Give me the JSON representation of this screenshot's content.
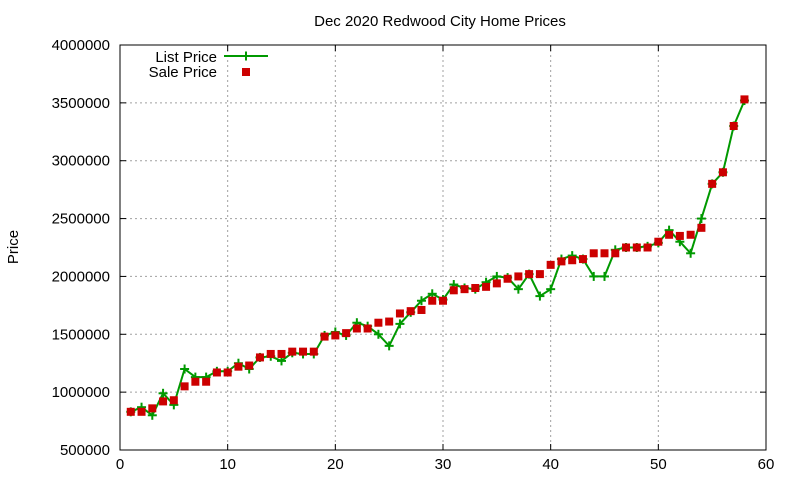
{
  "chart_data": {
    "type": "line",
    "title": "Dec 2020 Redwood City Home Prices",
    "xlabel": "",
    "ylabel": "Price",
    "xlim": [
      0,
      60
    ],
    "ylim": [
      500000,
      4000000
    ],
    "xticks": [
      "0",
      "10",
      "20",
      "30",
      "40",
      "50",
      "60"
    ],
    "yticks": [
      "500000",
      "1000000",
      "1500000",
      "2000000",
      "2500000",
      "3000000",
      "3500000",
      "4000000"
    ],
    "grid": true,
    "legend_position": "top-left",
    "series": [
      {
        "name": "List Price",
        "style": "line-with-plus-markers",
        "color": "#009900",
        "x": [
          1,
          2,
          3,
          4,
          5,
          6,
          7,
          8,
          9,
          10,
          11,
          12,
          13,
          14,
          15,
          16,
          17,
          18,
          19,
          20,
          21,
          22,
          23,
          24,
          25,
          26,
          27,
          28,
          29,
          30,
          31,
          32,
          33,
          34,
          35,
          36,
          37,
          38,
          39,
          40,
          41,
          42,
          43,
          44,
          45,
          46,
          47,
          48,
          49,
          50,
          51,
          52,
          53,
          54,
          55,
          56,
          57,
          58
        ],
        "y": [
          830000,
          870000,
          800000,
          990000,
          890000,
          1200000,
          1130000,
          1130000,
          1180000,
          1180000,
          1250000,
          1200000,
          1300000,
          1310000,
          1270000,
          1340000,
          1330000,
          1330000,
          1490000,
          1520000,
          1490000,
          1600000,
          1570000,
          1500000,
          1400000,
          1590000,
          1690000,
          1790000,
          1850000,
          1800000,
          1930000,
          1900000,
          1890000,
          1950000,
          2000000,
          1990000,
          1890000,
          2020000,
          1830000,
          1890000,
          2150000,
          2180000,
          2150000,
          2000000,
          2000000,
          2230000,
          2250000,
          2250000,
          2260000,
          2290000,
          2400000,
          2300000,
          2200000,
          2500000,
          2800000,
          2900000,
          3300000,
          3520000
        ]
      },
      {
        "name": "Sale Price",
        "style": "square-markers",
        "color": "#cc0000",
        "x": [
          1,
          2,
          3,
          4,
          5,
          6,
          7,
          8,
          9,
          10,
          11,
          12,
          13,
          14,
          15,
          16,
          17,
          18,
          19,
          20,
          21,
          22,
          23,
          24,
          25,
          26,
          27,
          28,
          29,
          30,
          31,
          32,
          33,
          34,
          35,
          36,
          37,
          38,
          39,
          40,
          41,
          42,
          43,
          44,
          45,
          46,
          47,
          48,
          49,
          50,
          51,
          52,
          53,
          54,
          55,
          56,
          57,
          58
        ],
        "y": [
          830000,
          830000,
          860000,
          920000,
          930000,
          1050000,
          1090000,
          1090000,
          1170000,
          1170000,
          1220000,
          1230000,
          1300000,
          1330000,
          1330000,
          1350000,
          1350000,
          1350000,
          1480000,
          1490000,
          1510000,
          1550000,
          1550000,
          1600000,
          1610000,
          1680000,
          1700000,
          1710000,
          1790000,
          1790000,
          1880000,
          1890000,
          1900000,
          1910000,
          1940000,
          1980000,
          2000000,
          2020000,
          2020000,
          2100000,
          2130000,
          2140000,
          2150000,
          2200000,
          2200000,
          2200000,
          2250000,
          2250000,
          2250000,
          2300000,
          2360000,
          2350000,
          2360000,
          2420000,
          2800000,
          2900000,
          3300000,
          3530000
        ]
      }
    ]
  }
}
